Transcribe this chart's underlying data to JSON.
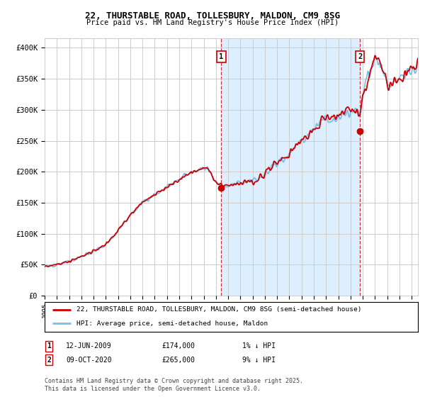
{
  "title": "22, THURSTABLE ROAD, TOLLESBURY, MALDON, CM9 8SG",
  "subtitle": "Price paid vs. HM Land Registry's House Price Index (HPI)",
  "ylabel_ticks": [
    0,
    50000,
    100000,
    150000,
    200000,
    250000,
    300000,
    350000,
    400000
  ],
  "ylabel_labels": [
    "£0",
    "£50K",
    "£100K",
    "£150K",
    "£200K",
    "£250K",
    "£300K",
    "£350K",
    "£400K"
  ],
  "ylim": [
    0,
    415000
  ],
  "xlim_start": 1995.0,
  "xlim_end": 2025.5,
  "sale1": {
    "year": 2009.44,
    "price": 174000,
    "label": "1",
    "date": "12-JUN-2009",
    "price_str": "£174,000",
    "note": "1% ↓ HPI"
  },
  "sale2": {
    "year": 2020.77,
    "price": 265000,
    "label": "2",
    "date": "09-OCT-2020",
    "price_str": "£265,000",
    "note": "9% ↓ HPI"
  },
  "legend_line1": "22, THURSTABLE ROAD, TOLLESBURY, MALDON, CM9 8SG (semi-detached house)",
  "legend_line2": "HPI: Average price, semi-detached house, Maldon",
  "footer": "Contains HM Land Registry data © Crown copyright and database right 2025.\nThis data is licensed under the Open Government Licence v3.0.",
  "hpi_color": "#7abfea",
  "price_color": "#cc0000",
  "shade_color": "#ddeeff",
  "grid_color": "#cccccc",
  "bg_color": "#ffffff",
  "plot_bg": "#ffffff"
}
